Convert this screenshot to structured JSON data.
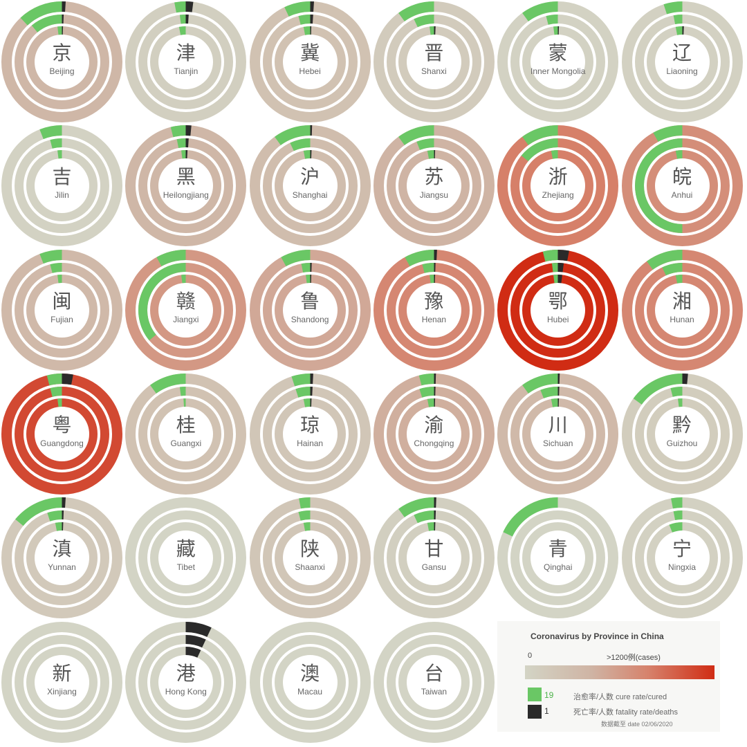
{
  "colors": {
    "background": "#ffffff",
    "cured": "#6ac765",
    "deaths": "#2a2a2a",
    "scale_low": "#d3d4c5",
    "scale_high": "#d02c14"
  },
  "chart_data": {
    "type": "radial-bar",
    "title": "Coronavirus by Province in China",
    "scale": {
      "min_label": "0",
      "max_label": ">1200例(cases)",
      "min": 0,
      "max": 1200
    },
    "legend": {
      "cure_value": "19",
      "cure_label": "治愈率/人数 cure rate/cured",
      "death_value": "1",
      "death_label": "死亡率/人数 fatality rate/deaths"
    },
    "date_label": "数据截至 date 02/06/2020",
    "rings": "outer ring = cure/fatality rate, middle and inner rings = cured and deaths counts",
    "provinces": [
      {
        "cn": "京",
        "en": "Beijing",
        "heat": 0.32,
        "rings": [
          {
            "cure": 0.12,
            "death": 0.01
          },
          {
            "cure": 0.11,
            "death": 0.006
          },
          {
            "cure": 0.02,
            "death": 0.005
          }
        ]
      },
      {
        "cn": "津",
        "en": "Tianjin",
        "heat": 0.05,
        "rings": [
          {
            "cure": 0.03,
            "death": 0.02
          },
          {
            "cure": 0.02,
            "death": 0.01
          },
          {
            "cure": 0.03,
            "death": 0
          }
        ]
      },
      {
        "cn": "冀",
        "en": "Hebei",
        "heat": 0.2,
        "rings": [
          {
            "cure": 0.07,
            "death": 0.01
          },
          {
            "cure": 0.04,
            "death": 0.01
          },
          {
            "cure": 0.03,
            "death": 0.005
          }
        ]
      },
      {
        "cn": "晋",
        "en": "Shanxi",
        "heat": 0.1,
        "rings": [
          {
            "cure": 0.1,
            "death": 0
          },
          {
            "cure": 0.07,
            "death": 0
          },
          {
            "cure": 0.02,
            "death": 0.007
          }
        ]
      },
      {
        "cn": "蒙",
        "en": "Inner Mongolia",
        "heat": 0.02,
        "rings": [
          {
            "cure": 0.1,
            "death": 0
          },
          {
            "cure": 0.04,
            "death": 0
          },
          {
            "cure": 0.02,
            "death": 0.005
          }
        ]
      },
      {
        "cn": "辽",
        "en": "Liaoning",
        "heat": 0.03,
        "rings": [
          {
            "cure": 0.05,
            "death": 0
          },
          {
            "cure": 0.03,
            "death": 0
          },
          {
            "cure": 0.03,
            "death": 0.007
          }
        ]
      },
      {
        "cn": "吉",
        "en": "Jilin",
        "heat": 0.02,
        "rings": [
          {
            "cure": 0.06,
            "death": 0
          },
          {
            "cure": 0.04,
            "death": 0
          },
          {
            "cure": 0.02,
            "death": 0
          }
        ]
      },
      {
        "cn": "黑",
        "en": "Heilongjiang",
        "heat": 0.32,
        "rings": [
          {
            "cure": 0.04,
            "death": 0.015
          },
          {
            "cure": 0.03,
            "death": 0.01
          },
          {
            "cure": 0.02,
            "death": 0.008
          }
        ]
      },
      {
        "cn": "沪",
        "en": "Shanghai",
        "heat": 0.25,
        "rings": [
          {
            "cure": 0.1,
            "death": 0.005
          },
          {
            "cure": 0.07,
            "death": 0
          },
          {
            "cure": 0.03,
            "death": 0.006
          }
        ]
      },
      {
        "cn": "苏",
        "en": "Jiangsu",
        "heat": 0.35,
        "rings": [
          {
            "cure": 0.1,
            "death": 0
          },
          {
            "cure": 0.06,
            "death": 0
          },
          {
            "cure": 0.03,
            "death": 0.005
          }
        ]
      },
      {
        "cn": "浙",
        "en": "Zhejiang",
        "heat": 0.66,
        "rings": [
          {
            "cure": 0.1,
            "death": 0
          },
          {
            "cure": 0.14,
            "death": 0
          },
          {
            "cure": 0.03,
            "death": 0
          }
        ]
      },
      {
        "cn": "皖",
        "en": "Anhui",
        "heat": 0.58,
        "rings": [
          {
            "cure": 0.08,
            "death": 0
          },
          {
            "cure": 0.5,
            "death": 0
          },
          {
            "cure": 0.03,
            "death": 0
          }
        ]
      },
      {
        "cn": "闽",
        "en": "Fujian",
        "heat": 0.3,
        "rings": [
          {
            "cure": 0.06,
            "death": 0
          },
          {
            "cure": 0.04,
            "death": 0
          },
          {
            "cure": 0.02,
            "death": 0
          }
        ]
      },
      {
        "cn": "赣",
        "en": "Jiangxi",
        "heat": 0.52,
        "rings": [
          {
            "cure": 0.08,
            "death": 0
          },
          {
            "cure": 0.36,
            "death": 0
          },
          {
            "cure": 0.02,
            "death": 0
          }
        ]
      },
      {
        "cn": "鲁",
        "en": "Shandong",
        "heat": 0.42,
        "rings": [
          {
            "cure": 0.08,
            "death": 0
          },
          {
            "cure": 0.03,
            "death": 0.005
          },
          {
            "cure": 0.02,
            "death": 0.005
          }
        ]
      },
      {
        "cn": "豫",
        "en": "Henan",
        "heat": 0.62,
        "rings": [
          {
            "cure": 0.08,
            "death": 0.008
          },
          {
            "cure": 0.04,
            "death": 0.005
          },
          {
            "cure": 0.02,
            "death": 0.005
          }
        ]
      },
      {
        "cn": "鄂",
        "en": "Hubei",
        "heat": 1.0,
        "rings": [
          {
            "cure": 0.04,
            "death": 0.03
          },
          {
            "cure": 0.02,
            "death": 0.02
          },
          {
            "cure": 0.02,
            "death": 0.02
          }
        ]
      },
      {
        "cn": "湘",
        "en": "Hunan",
        "heat": 0.62,
        "rings": [
          {
            "cure": 0.1,
            "death": 0
          },
          {
            "cure": 0.07,
            "death": 0
          },
          {
            "cure": 0.03,
            "death": 0
          }
        ]
      },
      {
        "cn": "粤",
        "en": "Guangdong",
        "heat": 0.88,
        "rings": [
          {
            "cure": 0.04,
            "death": 0.03
          },
          {
            "cure": 0.04,
            "death": 0
          },
          {
            "cure": 0.02,
            "death": 0
          }
        ]
      },
      {
        "cn": "桂",
        "en": "Guangxi",
        "heat": 0.2,
        "rings": [
          {
            "cure": 0.1,
            "death": 0
          },
          {
            "cure": 0.02,
            "death": 0
          },
          {
            "cure": 0.01,
            "death": 0
          }
        ]
      },
      {
        "cn": "琼",
        "en": "Hainan",
        "heat": 0.15,
        "rings": [
          {
            "cure": 0.05,
            "death": 0.008
          },
          {
            "cure": 0.05,
            "death": 0.008
          },
          {
            "cure": 0.03,
            "death": 0.006
          }
        ]
      },
      {
        "cn": "渝",
        "en": "Chongqing",
        "heat": 0.38,
        "rings": [
          {
            "cure": 0.04,
            "death": 0.005
          },
          {
            "cure": 0.05,
            "death": 0.005
          },
          {
            "cure": 0.03,
            "death": 0.005
          }
        ]
      },
      {
        "cn": "川",
        "en": "Sichuan",
        "heat": 0.3,
        "rings": [
          {
            "cure": 0.1,
            "death": 0.005
          },
          {
            "cure": 0.06,
            "death": 0.005
          },
          {
            "cure": 0.03,
            "death": 0.005
          }
        ]
      },
      {
        "cn": "黔",
        "en": "Guizhou",
        "heat": 0.08,
        "rings": [
          {
            "cure": 0.15,
            "death": 0.015
          },
          {
            "cure": 0.04,
            "death": 0
          },
          {
            "cure": 0.02,
            "death": 0
          }
        ]
      },
      {
        "cn": "滇",
        "en": "Yunnan",
        "heat": 0.12,
        "rings": [
          {
            "cure": 0.14,
            "death": 0.01
          },
          {
            "cure": 0.05,
            "death": 0.006
          },
          {
            "cure": 0.03,
            "death": 0.006
          }
        ]
      },
      {
        "cn": "藏",
        "en": "Tibet",
        "heat": 0.0,
        "rings": [
          {
            "cure": 0,
            "death": 0
          },
          {
            "cure": 0,
            "death": 0
          },
          {
            "cure": 0,
            "death": 0
          }
        ]
      },
      {
        "cn": "陕",
        "en": "Shaanxi",
        "heat": 0.15,
        "rings": [
          {
            "cure": 0.03,
            "death": 0
          },
          {
            "cure": 0.04,
            "death": 0
          },
          {
            "cure": 0.03,
            "death": 0
          }
        ]
      },
      {
        "cn": "甘",
        "en": "Gansu",
        "heat": 0.05,
        "rings": [
          {
            "cure": 0.1,
            "death": 0.006
          },
          {
            "cure": 0.07,
            "death": 0.006
          },
          {
            "cure": 0.03,
            "death": 0.006
          }
        ]
      },
      {
        "cn": "青",
        "en": "Qinghai",
        "heat": 0.0,
        "rings": [
          {
            "cure": 0.18,
            "death": 0
          },
          {
            "cure": 0,
            "death": 0
          },
          {
            "cure": 0,
            "death": 0
          }
        ]
      },
      {
        "cn": "宁",
        "en": "Ningxia",
        "heat": 0.03,
        "rings": [
          {
            "cure": 0.03,
            "death": 0
          },
          {
            "cure": 0.03,
            "death": 0
          },
          {
            "cure": 0.06,
            "death": 0
          }
        ]
      },
      {
        "cn": "新",
        "en": "Xinjiang",
        "heat": 0.0,
        "rings": [
          {
            "cure": 0,
            "death": 0
          },
          {
            "cure": 0,
            "death": 0
          },
          {
            "cure": 0,
            "death": 0
          }
        ]
      },
      {
        "cn": "港",
        "en": "Hong Kong",
        "heat": 0.0,
        "rings": [
          {
            "cure": 0,
            "death": 0.07
          },
          {
            "cure": 0,
            "death": 0.07
          },
          {
            "cure": 0,
            "death": 0.07
          }
        ]
      },
      {
        "cn": "澳",
        "en": "Macau",
        "heat": 0.0,
        "rings": [
          {
            "cure": 0,
            "death": 0
          },
          {
            "cure": 0,
            "death": 0
          },
          {
            "cure": 0,
            "death": 0
          }
        ]
      },
      {
        "cn": "台",
        "en": "Taiwan",
        "heat": 0.0,
        "rings": [
          {
            "cure": 0,
            "death": 0
          },
          {
            "cure": 0,
            "death": 0
          },
          {
            "cure": 0,
            "death": 0
          }
        ]
      }
    ]
  }
}
